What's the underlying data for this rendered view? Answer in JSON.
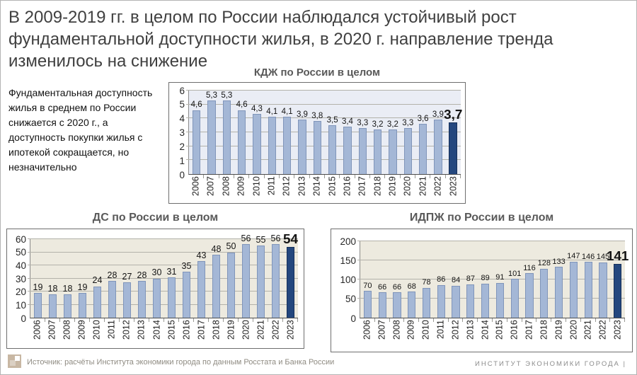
{
  "slide": {
    "title_lines": [
      "В 2009-2019 гг. в целом по России наблюдался устойчивый рост",
      "фундаментальной доступности жилья, в 2020 г. направление тренда",
      "изменилось на снижение"
    ],
    "note": "Фундаментальная доступность жилья в среднем  по России снижается с 2020 г., а доступность покупки жилья с ипотекой сокращается, но незначительно",
    "footer": {
      "source": "Источник: расчёты Института экономики города по данным Росстата и Банка России",
      "brand": "ИНСТИТУТ ЭКОНОМИКИ ГОРОДА |"
    }
  },
  "colors": {
    "bar_fill": "#a4b7d6",
    "bar_border": "#8095ba",
    "bar_last_fill": "#24477e",
    "bar_last_border": "#16305a",
    "grid_line": "#b3b2aa",
    "frame_border": "#6e6e6e",
    "title_text": "#404040",
    "chart_title_text": "#595959",
    "footer_text": "#8f8b82",
    "brand_text": "#8c8c8c",
    "logo_tan": "#c8b7a3"
  },
  "chart_data": [
    {
      "type": "bar",
      "title": "КДЖ по России в целом",
      "categories": [
        "2006",
        "2007",
        "2008",
        "2009",
        "2010",
        "2011",
        "2012",
        "2013",
        "2014",
        "2015",
        "2016",
        "2017",
        "2018",
        "2019",
        "2020",
        "2021",
        "2022",
        "2023"
      ],
      "values": [
        4.6,
        5.3,
        5.3,
        4.6,
        4.3,
        4.1,
        4.1,
        3.9,
        3.8,
        3.5,
        3.4,
        3.3,
        3.2,
        3.2,
        3.3,
        3.6,
        3.9,
        3.7
      ],
      "labels": [
        "4,6",
        "5,3",
        "5,3",
        "4,6",
        "4,3",
        "4,1",
        "4,1",
        "3,9",
        "3,8",
        "3,5",
        "3,4",
        "3,3",
        "3,2",
        "3,2",
        "3,3",
        "3,6",
        "3,9",
        "3,7"
      ],
      "xlabel": "",
      "ylabel": "",
      "ylim": [
        0,
        6
      ],
      "ystep": 1,
      "grid": true,
      "legend": false,
      "highlight_last": true,
      "plot_bg": "#eaedf5"
    },
    {
      "type": "bar",
      "title": "ДС по России в целом",
      "categories": [
        "2006",
        "2007",
        "2008",
        "2009",
        "2010",
        "2011",
        "2012",
        "2013",
        "2014",
        "2015",
        "2016",
        "2017",
        "2018",
        "2019",
        "2020",
        "2021",
        "2022",
        "2023"
      ],
      "values": [
        19,
        18,
        18,
        19,
        24,
        28,
        27,
        28,
        30,
        31,
        35,
        43,
        48,
        50,
        56,
        55,
        56,
        54
      ],
      "labels": [
        "19",
        "18",
        "18",
        "19",
        "24",
        "28",
        "27",
        "28",
        "30",
        "31",
        "35",
        "43",
        "48",
        "50",
        "56",
        "55",
        "56",
        "54"
      ],
      "xlabel": "",
      "ylabel": "",
      "ylim": [
        0,
        60
      ],
      "ystep": 10,
      "grid": true,
      "legend": false,
      "highlight_last": true,
      "plot_bg": "#edeadf"
    },
    {
      "type": "bar",
      "title": "ИДПЖ по России в целом",
      "categories": [
        "2006",
        "2007",
        "2008",
        "2009",
        "2010",
        "2011",
        "2012",
        "2013",
        "2014",
        "2015",
        "2016",
        "2017",
        "2018",
        "2019",
        "2020",
        "2021",
        "2022",
        "2023"
      ],
      "values": [
        70,
        66,
        66,
        68,
        78,
        86,
        84,
        87,
        89,
        91,
        101,
        116,
        128,
        133,
        147,
        146,
        145,
        141
      ],
      "labels": [
        "70",
        "66",
        "66",
        "68",
        "78",
        "86",
        "84",
        "87",
        "89",
        "91",
        "101",
        "116",
        "128",
        "133",
        "147",
        "146",
        "145",
        "141"
      ],
      "xlabel": "",
      "ylabel": "",
      "ylim": [
        0,
        200
      ],
      "ystep": 50,
      "grid": true,
      "legend": false,
      "highlight_last": true,
      "plot_bg": "#edeadf"
    }
  ]
}
